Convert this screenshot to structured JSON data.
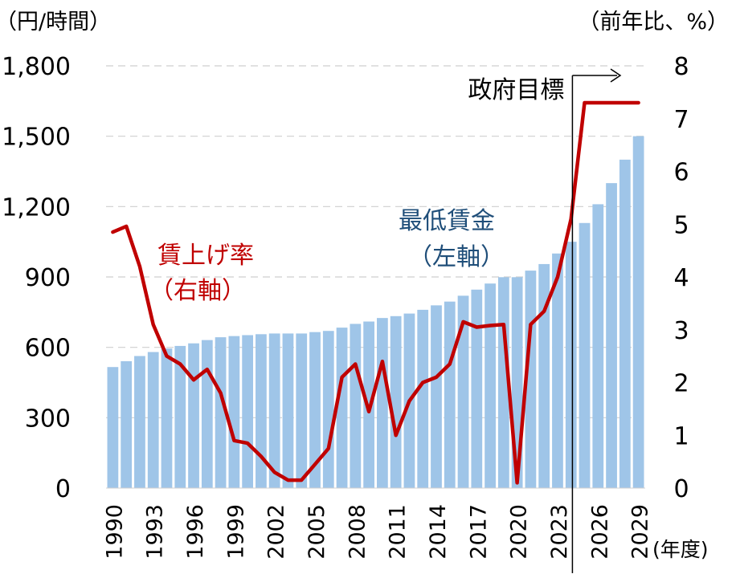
{
  "chart_data": {
    "type": "bar",
    "left_unit": "（円/時間）",
    "right_unit": "（前年比、%）",
    "x_unit": "(年度)",
    "x": [
      1990,
      1991,
      1992,
      1993,
      1994,
      1995,
      1996,
      1997,
      1998,
      1999,
      2000,
      2001,
      2002,
      2003,
      2004,
      2005,
      2006,
      2007,
      2008,
      2009,
      2010,
      2011,
      2012,
      2013,
      2014,
      2015,
      2016,
      2017,
      2018,
      2019,
      2020,
      2021,
      2022,
      2023,
      2024,
      2025,
      2026,
      2027,
      2028,
      2029
    ],
    "x_tick_labels": [
      "1990",
      "1993",
      "1996",
      "1999",
      "2002",
      "2005",
      "2008",
      "2011",
      "2014",
      "2017",
      "2020",
      "2023",
      "2026",
      "2029"
    ],
    "left_axis": {
      "ylim": [
        0,
        1800
      ],
      "ticks": [
        "0",
        "300",
        "600",
        "900",
        "1,200",
        "1,500",
        "1,800"
      ]
    },
    "right_axis": {
      "ylim": [
        0,
        8
      ],
      "ticks": [
        "0",
        "1",
        "2",
        "3",
        "4",
        "5",
        "6",
        "7",
        "8"
      ]
    },
    "grid": true,
    "series": [
      {
        "name": "最低賃金",
        "name_line2": "（左軸）",
        "type": "bar",
        "axis": "left",
        "color": "#9fc5e8",
        "values": [
          516,
          541,
          563,
          580,
          595,
          606,
          617,
          631,
          643,
          648,
          652,
          656,
          659,
          659,
          659,
          665,
          670,
          684,
          700,
          710,
          725,
          733,
          744,
          760,
          779,
          795,
          820,
          846,
          872,
          899,
          899,
          927,
          955,
          1000,
          1050,
          1130,
          1210,
          1300,
          1400,
          1500
        ]
      },
      {
        "name": "賃上げ率",
        "name_line2": "（右軸）",
        "type": "line",
        "axis": "right",
        "color": "#c00000",
        "values": [
          4.85,
          4.96,
          4.2,
          3.1,
          2.5,
          2.35,
          2.05,
          2.25,
          1.8,
          0.9,
          0.85,
          0.6,
          0.3,
          0.15,
          0.15,
          0.45,
          0.75,
          2.1,
          2.35,
          1.45,
          2.4,
          1.0,
          1.65,
          2.0,
          2.1,
          2.35,
          3.15,
          3.05,
          3.08,
          3.1,
          0.1,
          3.1,
          3.35,
          4.0,
          5.1,
          7.3,
          7.3,
          7.3,
          7.3,
          7.3
        ]
      }
    ],
    "annotation": {
      "label": "政府目標",
      "from_x": 2024
    }
  }
}
